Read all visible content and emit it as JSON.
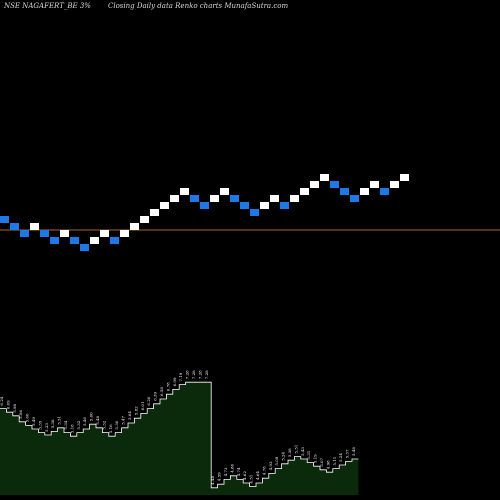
{
  "header": {
    "symbol": "NSE NAGAFERT_BE 3%",
    "subtitle": "Closing Daily data  Renko  charts MunafaSutra.com"
  },
  "colors": {
    "background": "#000000",
    "up_brick": "#ffffff",
    "down_brick": "#1e78e6",
    "reference_line": "#b5651d",
    "volume_fill": "#0b2a0b",
    "volume_outline": "#ffffff"
  },
  "chart_data": [
    {
      "type": "renko",
      "brick_percent": 3,
      "bricks": [
        {
          "dir": "down",
          "level": 0
        },
        {
          "dir": "down",
          "level": -1
        },
        {
          "dir": "down",
          "level": -2
        },
        {
          "dir": "up",
          "level": -1
        },
        {
          "dir": "down",
          "level": -2
        },
        {
          "dir": "down",
          "level": -3
        },
        {
          "dir": "up",
          "level": -2
        },
        {
          "dir": "down",
          "level": -3
        },
        {
          "dir": "down",
          "level": -4
        },
        {
          "dir": "up",
          "level": -3
        },
        {
          "dir": "up",
          "level": -2
        },
        {
          "dir": "down",
          "level": -3
        },
        {
          "dir": "up",
          "level": -2
        },
        {
          "dir": "up",
          "level": -1
        },
        {
          "dir": "up",
          "level": 0
        },
        {
          "dir": "up",
          "level": 1
        },
        {
          "dir": "up",
          "level": 2
        },
        {
          "dir": "up",
          "level": 3
        },
        {
          "dir": "up",
          "level": 4
        },
        {
          "dir": "down",
          "level": 3
        },
        {
          "dir": "down",
          "level": 2
        },
        {
          "dir": "up",
          "level": 3
        },
        {
          "dir": "up",
          "level": 4
        },
        {
          "dir": "down",
          "level": 3
        },
        {
          "dir": "down",
          "level": 2
        },
        {
          "dir": "down",
          "level": 1
        },
        {
          "dir": "up",
          "level": 2
        },
        {
          "dir": "up",
          "level": 3
        },
        {
          "dir": "down",
          "level": 2
        },
        {
          "dir": "up",
          "level": 3
        },
        {
          "dir": "up",
          "level": 4
        },
        {
          "dir": "up",
          "level": 5
        },
        {
          "dir": "up",
          "level": 6
        },
        {
          "dir": "down",
          "level": 5
        },
        {
          "dir": "down",
          "level": 4
        },
        {
          "dir": "down",
          "level": 3
        },
        {
          "dir": "up",
          "level": 4
        },
        {
          "dir": "up",
          "level": 5
        },
        {
          "dir": "down",
          "level": 4
        },
        {
          "dir": "up",
          "level": 5
        },
        {
          "dir": "up",
          "level": 6
        }
      ],
      "reference_level": -1.5
    },
    {
      "type": "area",
      "name": "volume",
      "values": [
        7.2,
        6.9,
        6.6,
        6.1,
        5.8,
        5.5,
        5.2,
        5.0,
        5.3,
        5.6,
        5.2,
        4.9,
        5.2,
        5.5,
        5.9,
        5.6,
        5.2,
        4.9,
        5.2,
        5.6,
        6.0,
        6.4,
        6.8,
        7.2,
        7.6,
        8.0,
        8.4,
        8.8,
        9.2,
        9.4,
        9.4,
        9.4,
        9.4,
        0.6,
        0.9,
        1.3,
        1.6,
        1.3,
        1.0,
        0.7,
        1.0,
        1.4,
        1.8,
        2.2,
        2.6,
        2.9,
        3.2,
        3.0,
        2.7,
        2.4,
        2.1,
        1.9,
        2.2,
        2.5,
        2.8,
        3.0
      ],
      "point_labels": [
        "6.24",
        "6.09",
        "5.98",
        "5.86",
        "5.60",
        "5.49",
        "5.35",
        "5.23",
        "5.38",
        "5.51",
        "5.34",
        "5.18",
        "5.32",
        "5.46",
        "5.60",
        "5.48",
        "5.32",
        "5.16",
        "5.30",
        "5.47",
        "5.64",
        "5.82",
        "6.01",
        "6.20",
        "6.39",
        "6.58",
        "6.78",
        "6.99",
        "7.19",
        "7.28",
        "7.28",
        "7.28",
        "7.28",
        "4.48",
        "4.59",
        "4.73",
        "4.86",
        "4.74",
        "4.62",
        "4.51",
        "4.64",
        "4.78",
        "4.93",
        "5.09",
        "5.24",
        "5.38",
        "5.51",
        "5.43",
        "5.31",
        "5.19",
        "5.07",
        "4.98",
        "5.11",
        "5.24",
        "5.37",
        "5.48"
      ]
    }
  ]
}
